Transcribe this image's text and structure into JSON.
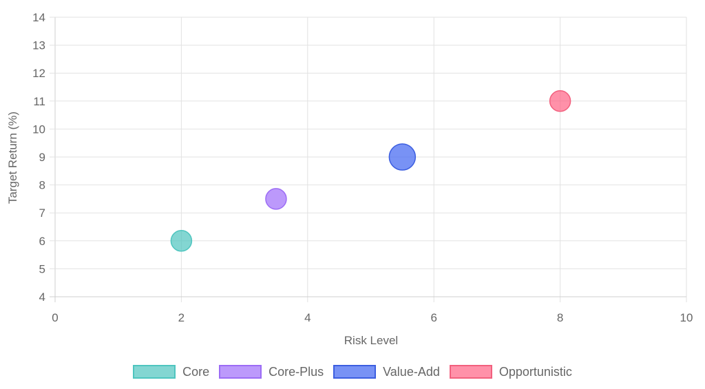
{
  "chart_data": {
    "type": "bubble",
    "title": "",
    "xlabel": "Risk Level",
    "ylabel": "Target Return (%)",
    "xlim": [
      0,
      10
    ],
    "ylim": [
      4,
      14
    ],
    "xticks": [
      "0",
      "2",
      "4",
      "6",
      "8",
      "10"
    ],
    "yticks": [
      "4",
      "5",
      "6",
      "7",
      "8",
      "9",
      "10",
      "11",
      "12",
      "13",
      "14"
    ],
    "grid": true,
    "legend_position": "bottom",
    "series": [
      {
        "name": "Core",
        "x": 2,
        "y": 6,
        "size": 15,
        "fill": "rgba(78,197,191,0.7)",
        "border": "#4ec5bf"
      },
      {
        "name": "Core-Plus",
        "x": 3.5,
        "y": 7.5,
        "size": 15,
        "fill": "rgba(160,110,250,0.7)",
        "border": "#9c6cf5"
      },
      {
        "name": "Value-Add",
        "x": 5.5,
        "y": 9,
        "size": 19,
        "fill": "rgba(75,110,242,0.75)",
        "border": "#3c5ee0"
      },
      {
        "name": "Opportunistic",
        "x": 8,
        "y": 11,
        "size": 15,
        "fill": "rgba(255,99,132,0.7)",
        "border": "#f2607e"
      }
    ]
  }
}
